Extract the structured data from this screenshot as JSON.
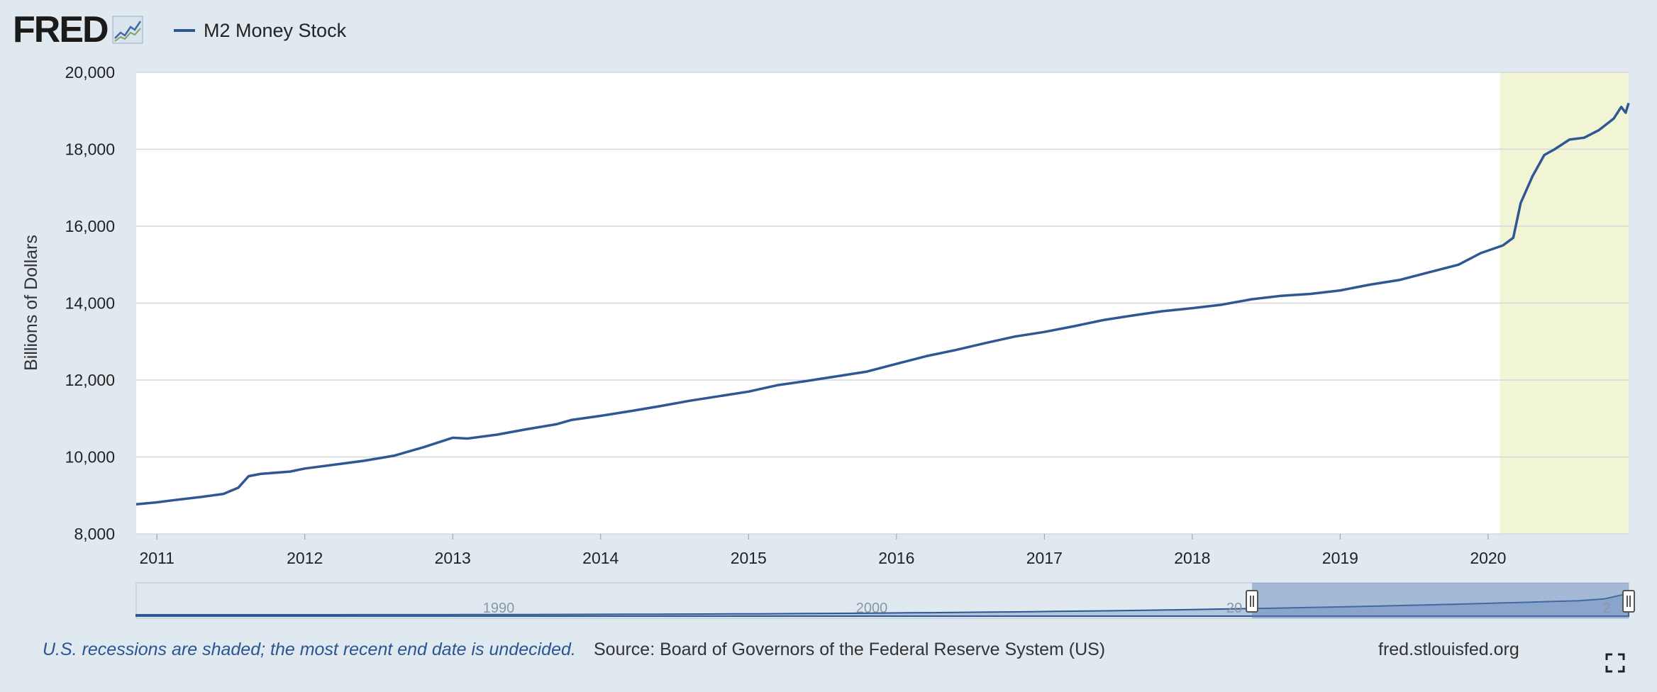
{
  "header": {
    "logo_text": "FRED",
    "logo_icon": "trend-chart-icon",
    "legend_label": "M2 Money Stock"
  },
  "footer": {
    "recession_note": "U.S. recessions are shaded; the most recent end date is undecided.",
    "source": "Source: Board of Governors of the Federal Reserve System (US)",
    "site": "fred.stlouisfed.org"
  },
  "navigator": {
    "labels": [
      "1990",
      "2000",
      "20",
      "2"
    ]
  },
  "colors": {
    "line": "#2f5892",
    "recession": "#f2f4d6",
    "background": "#e1e9f0",
    "plot": "#ffffff"
  },
  "chart_data": {
    "type": "line",
    "title": "",
    "xlabel": "",
    "ylabel": "Billions of Dollars",
    "ylim": [
      8000,
      20000
    ],
    "xlim": [
      2010.86,
      2020.95
    ],
    "yticks": [
      8000,
      10000,
      12000,
      14000,
      16000,
      18000,
      20000
    ],
    "ytick_labels": [
      "8,000",
      "10,000",
      "12,000",
      "14,000",
      "16,000",
      "18,000",
      "20,000"
    ],
    "xticks": [
      2011,
      2012,
      2013,
      2014,
      2015,
      2016,
      2017,
      2018,
      2019,
      2020
    ],
    "xtick_labels": [
      "2011",
      "2012",
      "2013",
      "2014",
      "2015",
      "2016",
      "2017",
      "2018",
      "2019",
      "2020"
    ],
    "recession": [
      2020.08,
      2020.95
    ],
    "series": [
      {
        "name": "M2 Money Stock",
        "points": [
          [
            2010.86,
            8770
          ],
          [
            2011.0,
            8820
          ],
          [
            2011.1,
            8870
          ],
          [
            2011.3,
            8960
          ],
          [
            2011.45,
            9040
          ],
          [
            2011.55,
            9200
          ],
          [
            2011.62,
            9500
          ],
          [
            2011.7,
            9560
          ],
          [
            2011.9,
            9620
          ],
          [
            2012.0,
            9700
          ],
          [
            2012.2,
            9800
          ],
          [
            2012.4,
            9900
          ],
          [
            2012.6,
            10030
          ],
          [
            2012.8,
            10250
          ],
          [
            2013.0,
            10500
          ],
          [
            2013.1,
            10480
          ],
          [
            2013.3,
            10580
          ],
          [
            2013.5,
            10720
          ],
          [
            2013.7,
            10850
          ],
          [
            2013.8,
            10960
          ],
          [
            2014.0,
            11070
          ],
          [
            2014.2,
            11190
          ],
          [
            2014.4,
            11320
          ],
          [
            2014.6,
            11460
          ],
          [
            2014.8,
            11580
          ],
          [
            2015.0,
            11700
          ],
          [
            2015.2,
            11870
          ],
          [
            2015.4,
            11980
          ],
          [
            2015.6,
            12100
          ],
          [
            2015.8,
            12220
          ],
          [
            2016.0,
            12420
          ],
          [
            2016.2,
            12620
          ],
          [
            2016.4,
            12780
          ],
          [
            2016.6,
            12960
          ],
          [
            2016.8,
            13130
          ],
          [
            2017.0,
            13250
          ],
          [
            2017.2,
            13400
          ],
          [
            2017.4,
            13560
          ],
          [
            2017.6,
            13680
          ],
          [
            2017.8,
            13790
          ],
          [
            2018.0,
            13870
          ],
          [
            2018.2,
            13960
          ],
          [
            2018.4,
            14100
          ],
          [
            2018.6,
            14190
          ],
          [
            2018.8,
            14240
          ],
          [
            2019.0,
            14330
          ],
          [
            2019.2,
            14480
          ],
          [
            2019.4,
            14600
          ],
          [
            2019.6,
            14800
          ],
          [
            2019.8,
            15000
          ],
          [
            2019.95,
            15300
          ],
          [
            2020.1,
            15500
          ],
          [
            2020.17,
            15700
          ],
          [
            2020.22,
            16600
          ],
          [
            2020.3,
            17300
          ],
          [
            2020.38,
            17850
          ],
          [
            2020.45,
            18000
          ],
          [
            2020.55,
            18250
          ],
          [
            2020.65,
            18300
          ],
          [
            2020.75,
            18500
          ],
          [
            2020.85,
            18800
          ],
          [
            2020.9,
            19100
          ],
          [
            2020.93,
            18950
          ],
          [
            2020.95,
            19200
          ]
        ]
      }
    ]
  }
}
